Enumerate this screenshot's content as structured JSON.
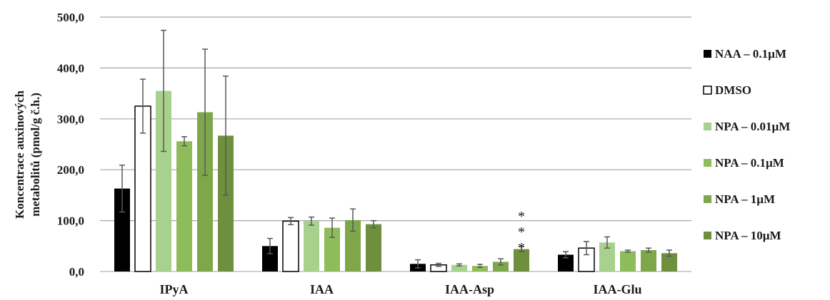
{
  "chart_data": {
    "type": "bar",
    "ylabel_lines": [
      "Koncentrace auxinových",
      "metabolitů (pmol/g č.h.)"
    ],
    "ylim": [
      0,
      500
    ],
    "yticks": [
      "0,0",
      "100,0",
      "200,0",
      "300,0",
      "400,0",
      "500,0"
    ],
    "grid": true,
    "legend_position": "right",
    "categories": [
      "IPyA",
      "IAA",
      "IAA-Asp",
      "IAA-Glu"
    ],
    "series": [
      {
        "name": "NAA – 0.1µM",
        "color": "#000000",
        "hollow": false,
        "values": [
          163,
          50,
          15,
          33
        ],
        "errors": [
          46,
          15,
          8,
          6
        ]
      },
      {
        "name": "DMSO",
        "color": "#ffffff",
        "hollow": true,
        "values": [
          325,
          99,
          13,
          46
        ],
        "errors": [
          53,
          7,
          3,
          13
        ]
      },
      {
        "name": "NPA – 0.01µM",
        "color": "#a9d18e",
        "hollow": false,
        "values": [
          355,
          99,
          13,
          57
        ],
        "errors": [
          119,
          8,
          2,
          11
        ]
      },
      {
        "name": "NPA – 0.1µM",
        "color": "#8fbc5a",
        "hollow": false,
        "values": [
          256,
          86,
          11,
          40
        ],
        "errors": [
          9,
          19,
          3,
          2
        ]
      },
      {
        "name": "NPA – 1µM",
        "color": "#7da74a",
        "hollow": false,
        "values": [
          313,
          101,
          19,
          42
        ],
        "errors": [
          124,
          22,
          6,
          4
        ]
      },
      {
        "name": "NPA – 10µM",
        "color": "#6e8f3e",
        "hollow": false,
        "values": [
          267,
          93,
          44,
          36
        ],
        "errors": [
          117,
          7,
          5,
          6
        ]
      }
    ],
    "annotations": [
      {
        "text": "*",
        "category": 2,
        "series": 5,
        "level": 3
      },
      {
        "text": "*",
        "category": 2,
        "series": 5,
        "level": 2
      },
      {
        "text": "*",
        "category": 2,
        "series": 5,
        "level": 1
      }
    ]
  }
}
